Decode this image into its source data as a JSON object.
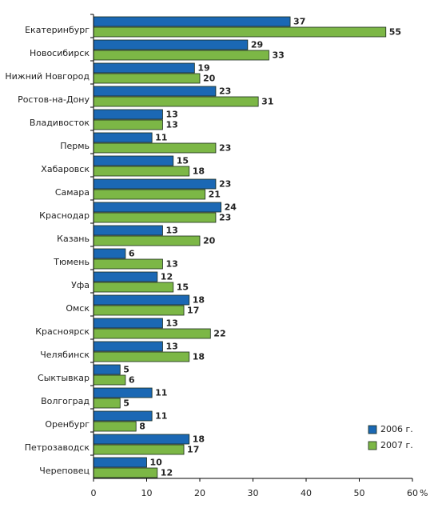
{
  "chart_data": {
    "type": "bar",
    "orientation": "horizontal",
    "categories": [
      "Екатеринбург",
      "Новосибирск",
      "Нижний Новгород",
      "Ростов-на-Дону",
      "Владивосток",
      "Пермь",
      "Хабаровск",
      "Самара",
      "Краснодар",
      "Казань",
      "Тюмень",
      "Уфа",
      "Омск",
      "Красноярск",
      "Челябинск",
      "Сыктывкар",
      "Волгоград",
      "Оренбург",
      "Петрозаводск",
      "Череповец"
    ],
    "series": [
      {
        "name": "2006 г.",
        "color": "#1b68b4",
        "values": [
          37,
          29,
          19,
          23,
          13,
          11,
          15,
          23,
          24,
          13,
          6,
          12,
          18,
          13,
          13,
          5,
          11,
          11,
          18,
          10
        ]
      },
      {
        "name": "2007 г.",
        "color": "#7cb746",
        "values": [
          55,
          33,
          20,
          31,
          13,
          23,
          18,
          21,
          23,
          20,
          13,
          15,
          17,
          22,
          18,
          6,
          5,
          8,
          17,
          12
        ]
      }
    ],
    "x_unit": "%",
    "xlim": [
      0,
      60
    ],
    "xticks": [
      0,
      10,
      20,
      30,
      40,
      50,
      60
    ],
    "grid": false,
    "legend": "bottom-right"
  }
}
